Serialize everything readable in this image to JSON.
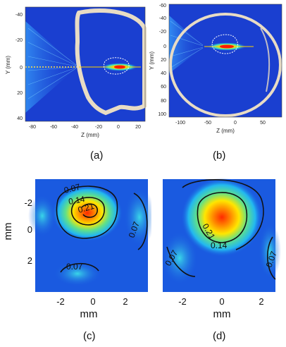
{
  "panels": {
    "a": {
      "caption": "(a)",
      "xlabel": "Z (mm)",
      "ylabel": "Y (mm)",
      "xticks": [
        "-80",
        "-60",
        "-40",
        "-20",
        "0",
        "20"
      ],
      "yticks": [
        "-40",
        "-20",
        "0",
        "20",
        "40"
      ]
    },
    "b": {
      "caption": "(b)",
      "xlabel": "Z (mm)",
      "ylabel": "Y (mm)",
      "xticks": [
        "-100",
        "-50",
        "0",
        "50"
      ],
      "yticks": [
        "-60",
        "-40",
        "-20",
        "0",
        "20",
        "40",
        "60",
        "80",
        "100"
      ]
    },
    "c": {
      "caption": "(c)",
      "xlabel": "mm",
      "ylabel": "mm",
      "xticks": [
        "-2",
        "0",
        "2"
      ],
      "yticks": [
        "-2",
        "0",
        "2"
      ],
      "contours": [
        "0.07",
        "0.14",
        "0.21",
        "0.07",
        "0.07"
      ]
    },
    "d": {
      "caption": "(d)",
      "xlabel": "mm",
      "xticks": [
        "-2",
        "0",
        "2"
      ],
      "contours": [
        "0.21",
        "0.14",
        "0.07",
        "0.07"
      ]
    }
  },
  "colors": {
    "field_bg": "#1a3fd0",
    "hot": "#ff2a00",
    "skull": "#e8dcc4"
  }
}
